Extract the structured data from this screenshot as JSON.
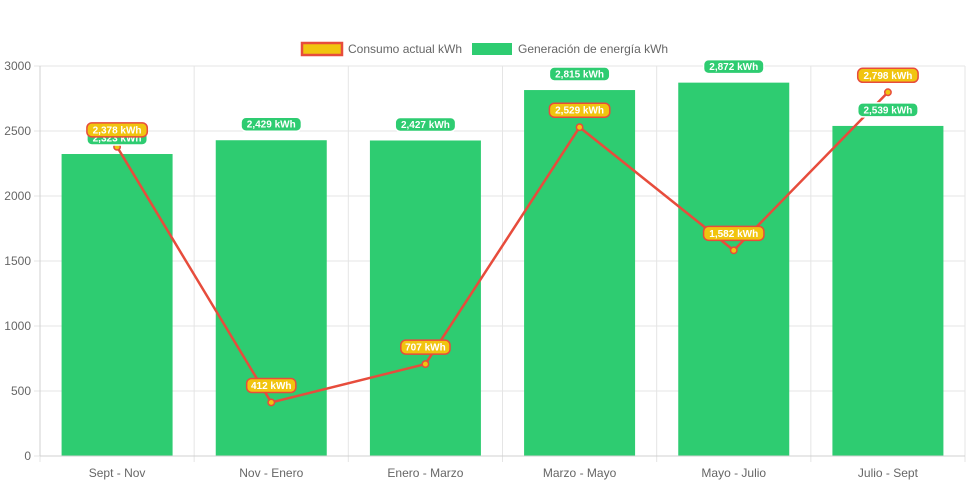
{
  "chart_data": {
    "type": "bar",
    "categories": [
      "Sept - Nov",
      "Nov - Enero",
      "Enero - Marzo",
      "Marzo - Mayo",
      "Mayo - Julio",
      "Julio - Sept"
    ],
    "series": [
      {
        "name": "Generación de energía kWh",
        "type": "bar",
        "values": [
          2323,
          2429,
          2427,
          2815,
          2872,
          2539
        ],
        "labels": [
          "2,323 kWh",
          "2,429 kWh",
          "2,427 kWh",
          "2,815 kWh",
          "2,872 kWh",
          "2,539 kWh"
        ],
        "color": "#2ecc71"
      },
      {
        "name": "Consumo actual kWh",
        "type": "line",
        "values": [
          2378,
          412,
          707,
          2529,
          1582,
          2798
        ],
        "labels": [
          "2,378 kWh",
          "412 kWh",
          "707 kWh",
          "2,529 kWh",
          "1,582 kWh",
          "2,798 kWh"
        ],
        "color": "#e74c3c",
        "fill_color": "#f1c40f"
      }
    ],
    "y_ticks": [
      "0",
      "500",
      "1000",
      "1500",
      "2000",
      "2500",
      "3000"
    ],
    "ylim": [
      0,
      3000
    ],
    "legend_position": "top-center",
    "legend": [
      "Consumo actual kWh",
      "Generación de energía kWh"
    ],
    "grid": true
  }
}
